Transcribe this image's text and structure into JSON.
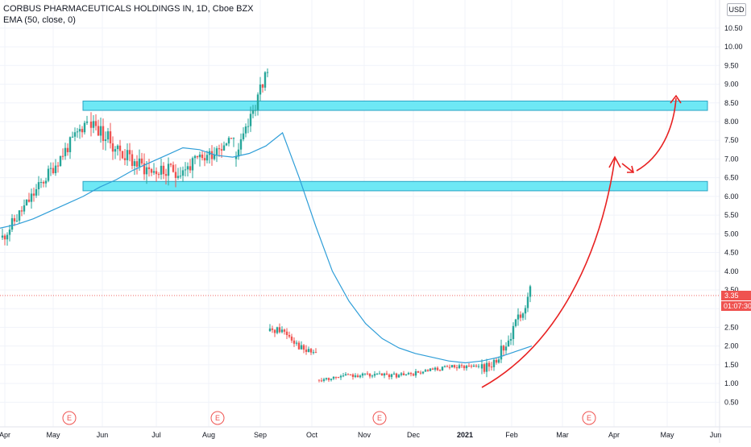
{
  "legend": {
    "title": "CORBUS PHARMACEUTICALS HOLDINGS IN, 1D, Cboe BZX",
    "indicator": "EMA (50, close, 0)"
  },
  "currency": "USD",
  "last_price": "3.35",
  "countdown": "01:07:30",
  "colors": {
    "up": "#26a69a",
    "down": "#ef5350",
    "ema": "#2f9ed8",
    "zone_fill": "#6ee8f5",
    "zone_stroke": "#2ba4c4",
    "arrow": "#e82222",
    "earnings": "#ef5350"
  },
  "chart_data": {
    "type": "candlestick",
    "y_range": [
      0.27,
      10.82
    ],
    "y_ticks": [
      "0.50",
      "1.00",
      "1.50",
      "2.00",
      "2.50",
      "3.00",
      "3.50",
      "4.00",
      "4.50",
      "5.00",
      "5.50",
      "6.00",
      "6.50",
      "7.00",
      "7.50",
      "8.00",
      "8.50",
      "9.00",
      "9.50",
      "10.00",
      "10.50"
    ],
    "x_ticks": [
      "Apr",
      "May",
      "Jun",
      "Jul",
      "Aug",
      "Sep",
      "Oct",
      "Nov",
      "Dec",
      "2021",
      "Feb",
      "Mar",
      "Apr",
      "May",
      "Jun"
    ],
    "earnings_markers": [
      "E",
      "E",
      "E",
      "E"
    ],
    "zones": [
      {
        "low": 8.3,
        "high": 8.55
      },
      {
        "low": 6.15,
        "high": 6.4
      }
    ],
    "series": [
      {
        "name": "EMA (50, close, 0)",
        "type": "line",
        "values": [
          5.15,
          5.25,
          5.4,
          5.6,
          5.8,
          6.0,
          6.25,
          6.45,
          6.7,
          6.9,
          7.1,
          7.3,
          7.25,
          7.1,
          7.05,
          7.15,
          7.35,
          7.7,
          6.5,
          5.2,
          4.0,
          3.2,
          2.6,
          2.2,
          1.95,
          1.8,
          1.7,
          1.6,
          1.55,
          1.6,
          1.7,
          1.85,
          2.0
        ]
      }
    ]
  }
}
